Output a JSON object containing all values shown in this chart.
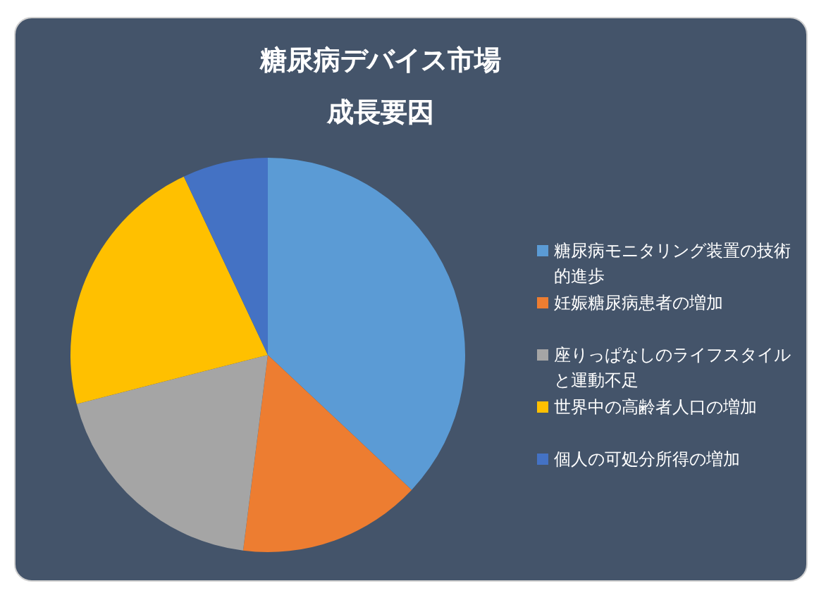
{
  "chart_data": {
    "type": "pie",
    "title": "糖尿病デバイス市場成長要因",
    "categories": [
      "糖尿病モニタリング装置の技術的進歩",
      "妊娠糖尿病患者の増加",
      "座りっぱなしのライフスタイルと運動不足",
      "世界中の高齢者人口の増加",
      "個人の可処分所得の増加"
    ],
    "values": [
      37,
      15,
      19,
      22,
      7
    ],
    "colors": [
      "#5b9bd5",
      "#ed7d31",
      "#a5a5a5",
      "#ffc000",
      "#4472c4"
    ],
    "legend": "right"
  }
}
